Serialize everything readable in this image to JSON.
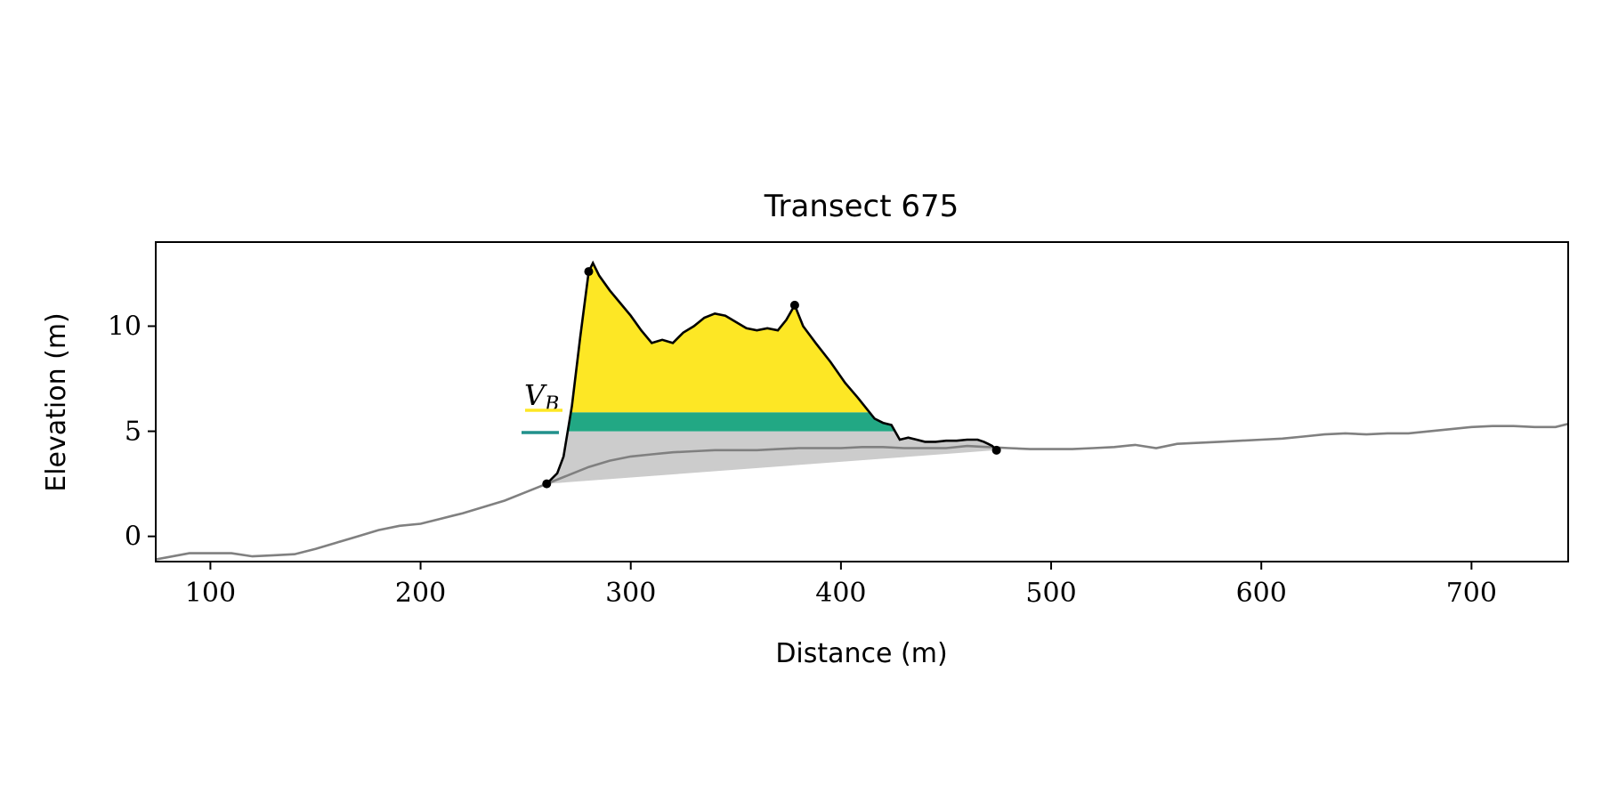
{
  "chart_data": {
    "type": "area",
    "title": "Transect 675",
    "xlabel": "Distance (m)",
    "ylabel": "Elevation (m)",
    "xlim": [
      74,
      746
    ],
    "ylim": [
      -1.2,
      14.0
    ],
    "xticks": [
      100,
      200,
      300,
      400,
      500,
      600,
      700
    ],
    "yticks": [
      0,
      5,
      10
    ],
    "grid": false,
    "colors": {
      "background_profile": "#808080",
      "dune_profile": "#000000",
      "volume_above_level": "#fde725",
      "volume_band": "#22a884",
      "band_line": "#21918c",
      "volume_below_band": "#cccccc"
    },
    "background_profile": {
      "x": [
        74,
        90,
        110,
        120,
        130,
        140,
        150,
        160,
        170,
        180,
        190,
        200,
        210,
        220,
        230,
        240,
        250,
        260,
        270,
        280,
        290,
        300,
        310,
        320,
        330,
        340,
        350,
        360,
        370,
        380,
        390,
        400,
        410,
        420,
        430,
        440,
        450,
        460,
        470,
        480,
        490,
        500,
        510,
        520,
        530,
        540,
        550,
        560,
        570,
        580,
        590,
        600,
        610,
        620,
        630,
        640,
        650,
        660,
        670,
        680,
        690,
        700,
        710,
        720,
        730,
        740,
        746
      ],
      "y": [
        -1.1,
        -0.8,
        -0.8,
        -0.95,
        -0.9,
        -0.85,
        -0.6,
        -0.3,
        0.0,
        0.3,
        0.5,
        0.6,
        0.85,
        1.1,
        1.4,
        1.7,
        2.1,
        2.5,
        2.9,
        3.3,
        3.6,
        3.8,
        3.9,
        4.0,
        4.05,
        4.1,
        4.1,
        4.1,
        4.15,
        4.2,
        4.2,
        4.2,
        4.25,
        4.25,
        4.2,
        4.2,
        4.2,
        4.3,
        4.25,
        4.2,
        4.15,
        4.15,
        4.15,
        4.2,
        4.25,
        4.35,
        4.2,
        4.4,
        4.45,
        4.5,
        4.55,
        4.6,
        4.65,
        4.75,
        4.85,
        4.9,
        4.85,
        4.9,
        4.9,
        5.0,
        5.1,
        5.2,
        5.25,
        5.25,
        5.2,
        5.2,
        5.35
      ]
    },
    "dune_profile": {
      "x": [
        260,
        265,
        268,
        272,
        276,
        280,
        282,
        285,
        290,
        295,
        300,
        305,
        310,
        315,
        320,
        325,
        330,
        335,
        340,
        345,
        350,
        355,
        360,
        365,
        370,
        374,
        378,
        382,
        388,
        395,
        402,
        408,
        412,
        416,
        420,
        424,
        428,
        432,
        436,
        440,
        445,
        450,
        455,
        460,
        465,
        468,
        470,
        472,
        474
      ],
      "y": [
        2.5,
        3.0,
        3.8,
        6.2,
        9.5,
        12.6,
        13.0,
        12.4,
        11.7,
        11.1,
        10.5,
        9.8,
        9.2,
        9.35,
        9.2,
        9.7,
        10.0,
        10.4,
        10.6,
        10.5,
        10.2,
        9.9,
        9.8,
        9.9,
        9.8,
        10.3,
        11.0,
        10.0,
        9.2,
        8.3,
        7.3,
        6.6,
        6.1,
        5.6,
        5.4,
        5.3,
        4.6,
        4.7,
        4.6,
        4.5,
        4.5,
        4.55,
        4.55,
        4.6,
        4.6,
        4.5,
        4.4,
        4.3,
        4.1
      ]
    },
    "markers": [
      {
        "x": 260,
        "y": 2.5
      },
      {
        "x": 280,
        "y": 12.6
      },
      {
        "x": 378,
        "y": 11.0
      },
      {
        "x": 474,
        "y": 4.1
      }
    ],
    "levels": {
      "band_bottom": 5.0,
      "band_top": 5.9
    },
    "baseline": {
      "x": [
        260,
        474
      ],
      "y": [
        2.5,
        4.1
      ]
    },
    "legend": {
      "placement": "left",
      "entries": [
        {
          "label": "V",
          "sub": "B",
          "color": "#fde725"
        },
        {
          "label": "",
          "sub": "",
          "color": "#21918c"
        }
      ]
    }
  }
}
